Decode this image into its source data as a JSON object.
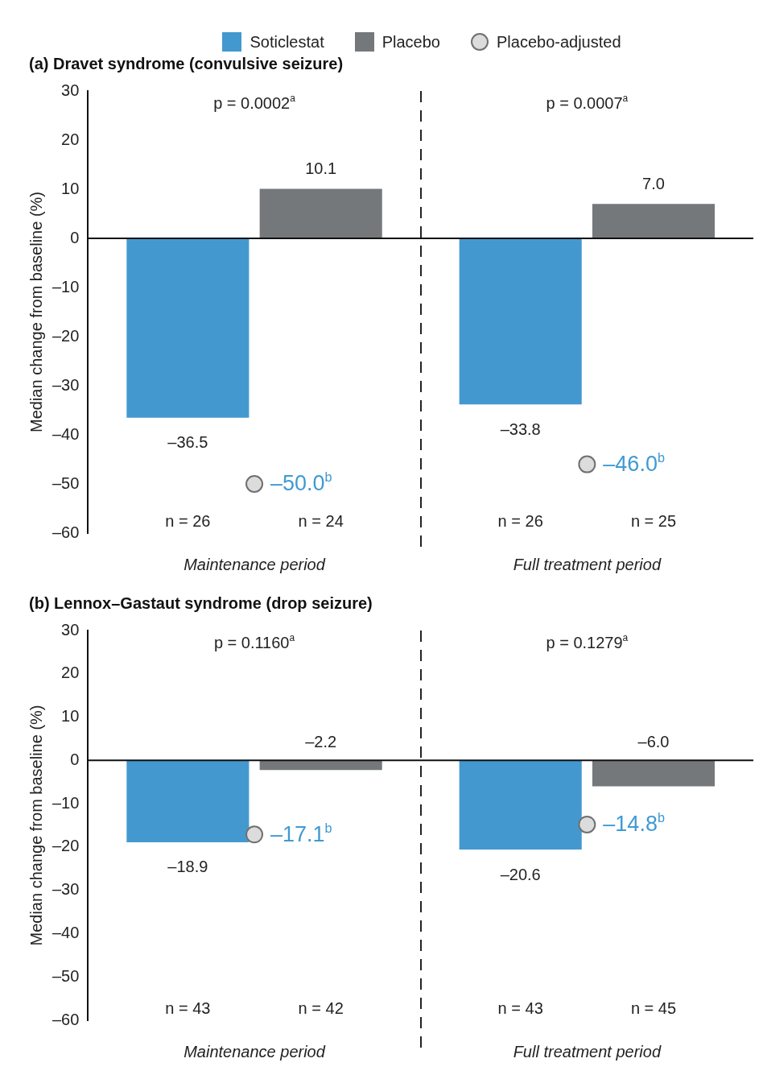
{
  "chart_data": [
    {
      "type": "bar",
      "title": "(a) Dravet syndrome (convulsive seizure)",
      "ylabel": "Median change from baseline (%)",
      "categories": [
        "Maintenance period",
        "Full treatment period"
      ],
      "series": [
        {
          "name": "Soticlestat",
          "color": "#4399cf",
          "values": [
            -36.5,
            -33.8
          ],
          "value_labels": [
            "–36.5",
            "–33.8"
          ]
        },
        {
          "name": "Placebo",
          "color": "#75787b",
          "values": [
            10.1,
            7.0
          ],
          "value_labels": [
            "10.1",
            "7.0"
          ]
        },
        {
          "name": "Placebo-adjusted",
          "type": "scatter",
          "marker": "circle",
          "color": "#dcdcdc",
          "x": [
            "Maintenance period",
            "Full treatment period"
          ],
          "values": [
            -50.0,
            -46.0
          ],
          "value_labels": [
            "–50.0$^{b}$",
            "–46.0$^{b}$"
          ]
        }
      ],
      "legend": "top",
      "ylim": [
        -60,
        30
      ],
      "yticks": [
        {
          "value": -60,
          "label": "–60"
        },
        {
          "value": -50,
          "label": "–50"
        },
        {
          "value": -40,
          "label": "–40"
        },
        {
          "value": -30,
          "label": "–30"
        },
        {
          "value": -20,
          "label": "–20"
        },
        {
          "value": -10,
          "label": "–10"
        },
        0,
        10,
        20,
        30
      ],
      "annotations": [
        "p = 0.0002$^{a}$",
        "p = 0.0007$^{a}$",
        "n = 26",
        "n = 24",
        "n = 26",
        "n = 25"
      ]
    },
    {
      "type": "bar",
      "title": "(b) Lennox–Gastaut syndrome (drop seizure)",
      "ylabel": "Median change from baseline (%)",
      "categories": [
        "Maintenance period",
        "Full treatment period"
      ],
      "series": [
        {
          "color": "#4399cf",
          "values": [
            -18.9,
            -20.6
          ],
          "value_labels": [
            "–18.9",
            "–20.6"
          ]
        },
        {
          "color": "#75787b",
          "values": [
            -2.2,
            -6.0
          ],
          "value_labels": [
            "–2.2",
            "–6.0"
          ]
        },
        {
          "type": "scatter",
          "marker": "circle",
          "color": "#dcdcdc",
          "x": [
            "Maintenance period",
            "Full treatment period"
          ],
          "values": [
            -17.1,
            -14.8
          ],
          "value_labels": [
            "–17.1$^{b}$",
            "–14.8$^{b}$"
          ]
        }
      ],
      "ylim": [
        -60,
        30
      ],
      "yticks": [
        {
          "value": -60,
          "label": "–60"
        },
        {
          "value": -50,
          "label": "–50"
        },
        {
          "value": -40,
          "label": "–40"
        },
        {
          "value": -30,
          "label": "–30"
        },
        {
          "value": -20,
          "label": "–20"
        },
        {
          "value": -10,
          "label": "–10"
        },
        0,
        10,
        20,
        30
      ],
      "annotations": [
        "p = 0.1160$^{a}$",
        "p = 0.1279$^{a}$",
        "n = 43",
        "n = 42",
        "n = 43",
        "n = 45"
      ]
    }
  ]
}
